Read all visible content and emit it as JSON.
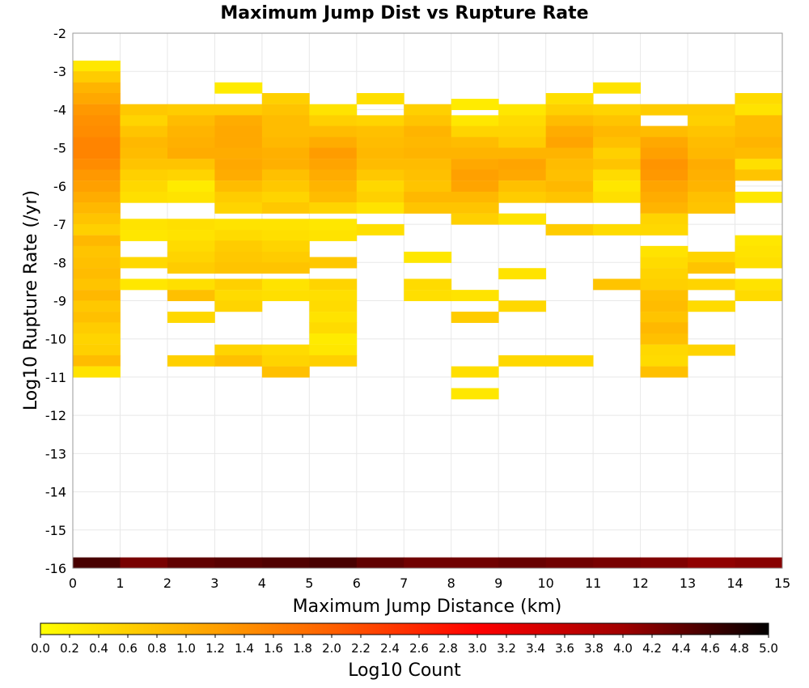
{
  "chart_data": {
    "type": "heatmap",
    "title": "Maximum Jump Dist vs Rupture Rate",
    "xlabel": "Maximum Jump Distance (km)",
    "ylabel": "Log10 Rupture Rate (/yr)",
    "xlim": [
      0,
      15
    ],
    "ylim": [
      -16,
      -2
    ],
    "x_ticks": [
      "0",
      "1",
      "2",
      "3",
      "4",
      "5",
      "6",
      "7",
      "8",
      "9",
      "10",
      "11",
      "12",
      "13",
      "14",
      "15"
    ],
    "y_ticks": [
      "-2",
      "-3",
      "-4",
      "-5",
      "-6",
      "-7",
      "-8",
      "-9",
      "-10",
      "-11",
      "-12",
      "-13",
      "-14",
      "-15",
      "-16"
    ],
    "grid": true,
    "x_bin_width": 1,
    "y_bin_width": 0.2857,
    "colorbar": {
      "label": "Log10 Count",
      "range": [
        0,
        5
      ],
      "ticks": [
        "0.0",
        "0.2",
        "0.4",
        "0.6",
        "0.8",
        "1.0",
        "1.2",
        "1.4",
        "1.6",
        "1.8",
        "2.0",
        "2.2",
        "2.4",
        "2.6",
        "2.8",
        "3.0",
        "3.2",
        "3.4",
        "3.6",
        "3.8",
        "4.0",
        "4.2",
        "4.4",
        "4.6",
        "4.8",
        "5.0"
      ],
      "colors": [
        "#ffff00",
        "#ffb000",
        "#ff6000",
        "#ff0000",
        "#a00000",
        "#000000"
      ],
      "placement": "bottom"
    },
    "bottom_row": {
      "y": -15.86,
      "values": [
        4.55,
        4.25,
        4.4,
        4.45,
        4.5,
        4.55,
        4.4,
        4.3,
        4.3,
        4.35,
        4.3,
        4.25,
        4.2,
        4.1,
        4.15
      ]
    },
    "columns": [
      {
        "x": 0,
        "cells": [
          [
            -2.86,
            0.3
          ],
          [
            -3.14,
            0.65
          ],
          [
            -3.43,
            0.95
          ],
          [
            -3.71,
            1.1
          ],
          [
            -4.0,
            1.3
          ],
          [
            -4.29,
            1.4
          ],
          [
            -4.57,
            1.45
          ],
          [
            -4.86,
            1.55
          ],
          [
            -5.14,
            1.55
          ],
          [
            -5.43,
            1.45
          ],
          [
            -5.71,
            1.3
          ],
          [
            -6.0,
            1.2
          ],
          [
            -6.29,
            1.05
          ],
          [
            -6.57,
            0.9
          ],
          [
            -6.86,
            0.75
          ],
          [
            -7.14,
            0.6
          ],
          [
            -7.43,
            0.9
          ],
          [
            -7.71,
            0.75
          ],
          [
            -8.0,
            0.8
          ],
          [
            -8.29,
            0.85
          ],
          [
            -8.57,
            0.75
          ],
          [
            -8.86,
            0.9
          ],
          [
            -9.14,
            0.7
          ],
          [
            -9.43,
            0.8
          ],
          [
            -9.71,
            0.65
          ],
          [
            -10.0,
            0.55
          ],
          [
            -10.29,
            0.6
          ],
          [
            -10.57,
            0.85
          ],
          [
            -10.86,
            0.35
          ]
        ]
      },
      {
        "x": 1,
        "cells": [
          [
            -4.0,
            0.7
          ],
          [
            -4.29,
            0.55
          ],
          [
            -4.57,
            0.75
          ],
          [
            -4.86,
            0.9
          ],
          [
            -5.14,
            0.85
          ],
          [
            -5.43,
            0.75
          ],
          [
            -5.71,
            0.6
          ],
          [
            -6.0,
            0.5
          ],
          [
            -6.29,
            0.4
          ],
          [
            -7.0,
            0.35
          ],
          [
            -7.29,
            0.3
          ],
          [
            -8.0,
            0.5
          ],
          [
            -8.57,
            0.3
          ]
        ]
      },
      {
        "x": 2,
        "cells": [
          [
            -4.0,
            0.65
          ],
          [
            -4.29,
            0.85
          ],
          [
            -4.57,
            0.95
          ],
          [
            -4.86,
            1.0
          ],
          [
            -5.14,
            1.05
          ],
          [
            -5.43,
            0.75
          ],
          [
            -5.71,
            0.55
          ],
          [
            -6.0,
            0.25
          ],
          [
            -6.29,
            0.35
          ],
          [
            -7.0,
            0.4
          ],
          [
            -7.29,
            0.35
          ],
          [
            -7.57,
            0.45
          ],
          [
            -7.86,
            0.55
          ],
          [
            -8.14,
            0.65
          ],
          [
            -8.57,
            0.4
          ],
          [
            -8.86,
            0.8
          ],
          [
            -9.43,
            0.5
          ],
          [
            -10.57,
            0.6
          ]
        ]
      },
      {
        "x": 3,
        "cells": [
          [
            -3.43,
            0.25
          ],
          [
            -4.0,
            0.65
          ],
          [
            -4.29,
            1.05
          ],
          [
            -4.57,
            1.1
          ],
          [
            -4.86,
            1.1
          ],
          [
            -5.14,
            1.05
          ],
          [
            -5.43,
            1.1
          ],
          [
            -5.71,
            1.05
          ],
          [
            -6.0,
            0.85
          ],
          [
            -6.29,
            0.65
          ],
          [
            -6.57,
            0.55
          ],
          [
            -7.0,
            0.35
          ],
          [
            -7.29,
            0.45
          ],
          [
            -7.57,
            0.65
          ],
          [
            -7.86,
            0.7
          ],
          [
            -8.14,
            0.75
          ],
          [
            -8.57,
            0.6
          ],
          [
            -8.86,
            0.45
          ],
          [
            -9.14,
            0.55
          ],
          [
            -10.29,
            0.55
          ],
          [
            -10.57,
            0.8
          ]
        ]
      },
      {
        "x": 4,
        "cells": [
          [
            -3.71,
            0.6
          ],
          [
            -4.0,
            0.75
          ],
          [
            -4.29,
            0.85
          ],
          [
            -4.57,
            0.85
          ],
          [
            -4.86,
            0.9
          ],
          [
            -5.14,
            1.0
          ],
          [
            -5.43,
            1.0
          ],
          [
            -5.71,
            0.8
          ],
          [
            -6.0,
            0.7
          ],
          [
            -6.29,
            0.55
          ],
          [
            -6.57,
            0.7
          ],
          [
            -7.0,
            0.35
          ],
          [
            -7.29,
            0.4
          ],
          [
            -7.57,
            0.55
          ],
          [
            -7.86,
            0.65
          ],
          [
            -8.14,
            0.75
          ],
          [
            -8.57,
            0.35
          ],
          [
            -8.86,
            0.4
          ],
          [
            -10.29,
            0.45
          ],
          [
            -10.57,
            0.55
          ],
          [
            -10.86,
            0.8
          ]
        ]
      },
      {
        "x": 5,
        "cells": [
          [
            -4.0,
            0.35
          ],
          [
            -4.29,
            0.6
          ],
          [
            -4.57,
            0.85
          ],
          [
            -4.86,
            1.05
          ],
          [
            -5.14,
            1.25
          ],
          [
            -5.43,
            1.15
          ],
          [
            -5.71,
            1.05
          ],
          [
            -6.0,
            0.95
          ],
          [
            -6.29,
            0.85
          ],
          [
            -6.57,
            0.55
          ],
          [
            -7.0,
            0.3
          ],
          [
            -7.29,
            0.35
          ],
          [
            -8.0,
            0.7
          ],
          [
            -8.57,
            0.55
          ],
          [
            -8.86,
            0.4
          ],
          [
            -9.14,
            0.45
          ],
          [
            -9.43,
            0.35
          ],
          [
            -9.71,
            0.45
          ],
          [
            -10.0,
            0.25
          ],
          [
            -10.29,
            0.3
          ],
          [
            -10.57,
            0.6
          ]
        ]
      },
      {
        "x": 6,
        "cells": [
          [
            -3.71,
            0.4
          ],
          [
            -4.29,
            0.55
          ],
          [
            -4.57,
            0.8
          ],
          [
            -4.86,
            0.85
          ],
          [
            -5.14,
            0.9
          ],
          [
            -5.43,
            0.85
          ],
          [
            -5.71,
            0.7
          ],
          [
            -6.0,
            0.5
          ],
          [
            -6.29,
            0.6
          ],
          [
            -6.57,
            0.35
          ],
          [
            -7.14,
            0.4
          ]
        ]
      },
      {
        "x": 7,
        "cells": [
          [
            -4.0,
            0.6
          ],
          [
            -4.29,
            0.75
          ],
          [
            -4.57,
            0.95
          ],
          [
            -4.86,
            0.9
          ],
          [
            -5.14,
            0.95
          ],
          [
            -5.43,
            0.85
          ],
          [
            -5.71,
            0.8
          ],
          [
            -6.0,
            0.75
          ],
          [
            -6.29,
            0.9
          ],
          [
            -6.57,
            0.75
          ],
          [
            -7.86,
            0.3
          ],
          [
            -8.57,
            0.45
          ],
          [
            -8.86,
            0.4
          ]
        ]
      },
      {
        "x": 8,
        "cells": [
          [
            -3.86,
            0.25
          ],
          [
            -4.29,
            0.3
          ],
          [
            -4.57,
            0.55
          ],
          [
            -4.86,
            0.85
          ],
          [
            -5.14,
            0.95
          ],
          [
            -5.43,
            1.1
          ],
          [
            -5.71,
            1.2
          ],
          [
            -6.0,
            1.15
          ],
          [
            -6.29,
            0.9
          ],
          [
            -6.57,
            0.75
          ],
          [
            -6.86,
            0.6
          ],
          [
            -8.86,
            0.35
          ],
          [
            -9.43,
            0.65
          ],
          [
            -10.86,
            0.4
          ],
          [
            -11.43,
            0.3
          ]
        ]
      },
      {
        "x": 9,
        "cells": [
          [
            -4.0,
            0.3
          ],
          [
            -4.29,
            0.45
          ],
          [
            -4.57,
            0.55
          ],
          [
            -4.86,
            0.65
          ],
          [
            -5.14,
            0.95
          ],
          [
            -5.43,
            1.15
          ],
          [
            -5.71,
            1.1
          ],
          [
            -6.0,
            0.8
          ],
          [
            -6.29,
            0.65
          ],
          [
            -6.86,
            0.35
          ],
          [
            -8.29,
            0.35
          ],
          [
            -9.14,
            0.5
          ],
          [
            -10.57,
            0.5
          ]
        ]
      },
      {
        "x": 10,
        "cells": [
          [
            -3.71,
            0.4
          ],
          [
            -4.0,
            0.6
          ],
          [
            -4.29,
            0.85
          ],
          [
            -4.57,
            1.05
          ],
          [
            -4.86,
            1.15
          ],
          [
            -5.14,
            0.95
          ],
          [
            -5.43,
            0.85
          ],
          [
            -5.71,
            0.8
          ],
          [
            -6.0,
            0.9
          ],
          [
            -6.29,
            0.75
          ],
          [
            -7.14,
            0.65
          ],
          [
            -10.57,
            0.5
          ]
        ]
      },
      {
        "x": 11,
        "cells": [
          [
            -3.43,
            0.35
          ],
          [
            -4.0,
            0.55
          ],
          [
            -4.29,
            0.75
          ],
          [
            -4.57,
            0.9
          ],
          [
            -4.86,
            0.8
          ],
          [
            -5.14,
            0.6
          ],
          [
            -5.43,
            0.75
          ],
          [
            -5.71,
            0.45
          ],
          [
            -6.0,
            0.3
          ],
          [
            -6.29,
            0.4
          ],
          [
            -7.14,
            0.45
          ],
          [
            -8.57,
            0.75
          ]
        ]
      },
      {
        "x": 12,
        "cells": [
          [
            -4.0,
            0.65
          ],
          [
            -4.57,
            0.85
          ],
          [
            -4.86,
            1.1
          ],
          [
            -5.14,
            1.2
          ],
          [
            -5.43,
            1.35
          ],
          [
            -5.71,
            1.3
          ],
          [
            -6.0,
            1.15
          ],
          [
            -6.29,
            1.05
          ],
          [
            -6.57,
            0.95
          ],
          [
            -6.86,
            0.55
          ],
          [
            -7.14,
            0.5
          ],
          [
            -7.71,
            0.35
          ],
          [
            -8.0,
            0.45
          ],
          [
            -8.29,
            0.55
          ],
          [
            -8.57,
            0.6
          ],
          [
            -8.86,
            0.8
          ],
          [
            -9.14,
            0.85
          ],
          [
            -9.43,
            0.75
          ],
          [
            -9.71,
            0.9
          ],
          [
            -10.0,
            0.8
          ],
          [
            -10.29,
            0.5
          ],
          [
            -10.57,
            0.45
          ],
          [
            -10.86,
            0.8
          ]
        ]
      },
      {
        "x": 13,
        "cells": [
          [
            -4.0,
            0.65
          ],
          [
            -4.29,
            0.6
          ],
          [
            -4.57,
            0.75
          ],
          [
            -4.86,
            0.85
          ],
          [
            -5.14,
            0.9
          ],
          [
            -5.43,
            1.05
          ],
          [
            -5.71,
            1.0
          ],
          [
            -6.0,
            0.95
          ],
          [
            -6.29,
            0.8
          ],
          [
            -6.57,
            0.75
          ],
          [
            -7.86,
            0.55
          ],
          [
            -8.14,
            0.75
          ],
          [
            -8.57,
            0.55
          ],
          [
            -9.14,
            0.45
          ],
          [
            -10.29,
            0.55
          ]
        ]
      },
      {
        "x": 14,
        "cells": [
          [
            -3.71,
            0.45
          ],
          [
            -4.0,
            0.35
          ],
          [
            -4.29,
            0.85
          ],
          [
            -4.57,
            0.85
          ],
          [
            -4.86,
            0.95
          ],
          [
            -5.14,
            0.85
          ],
          [
            -5.43,
            0.4
          ],
          [
            -5.71,
            0.75
          ],
          [
            -6.29,
            0.3
          ],
          [
            -7.43,
            0.3
          ],
          [
            -7.71,
            0.35
          ],
          [
            -8.0,
            0.4
          ],
          [
            -8.57,
            0.35
          ],
          [
            -8.86,
            0.45
          ]
        ]
      }
    ]
  }
}
